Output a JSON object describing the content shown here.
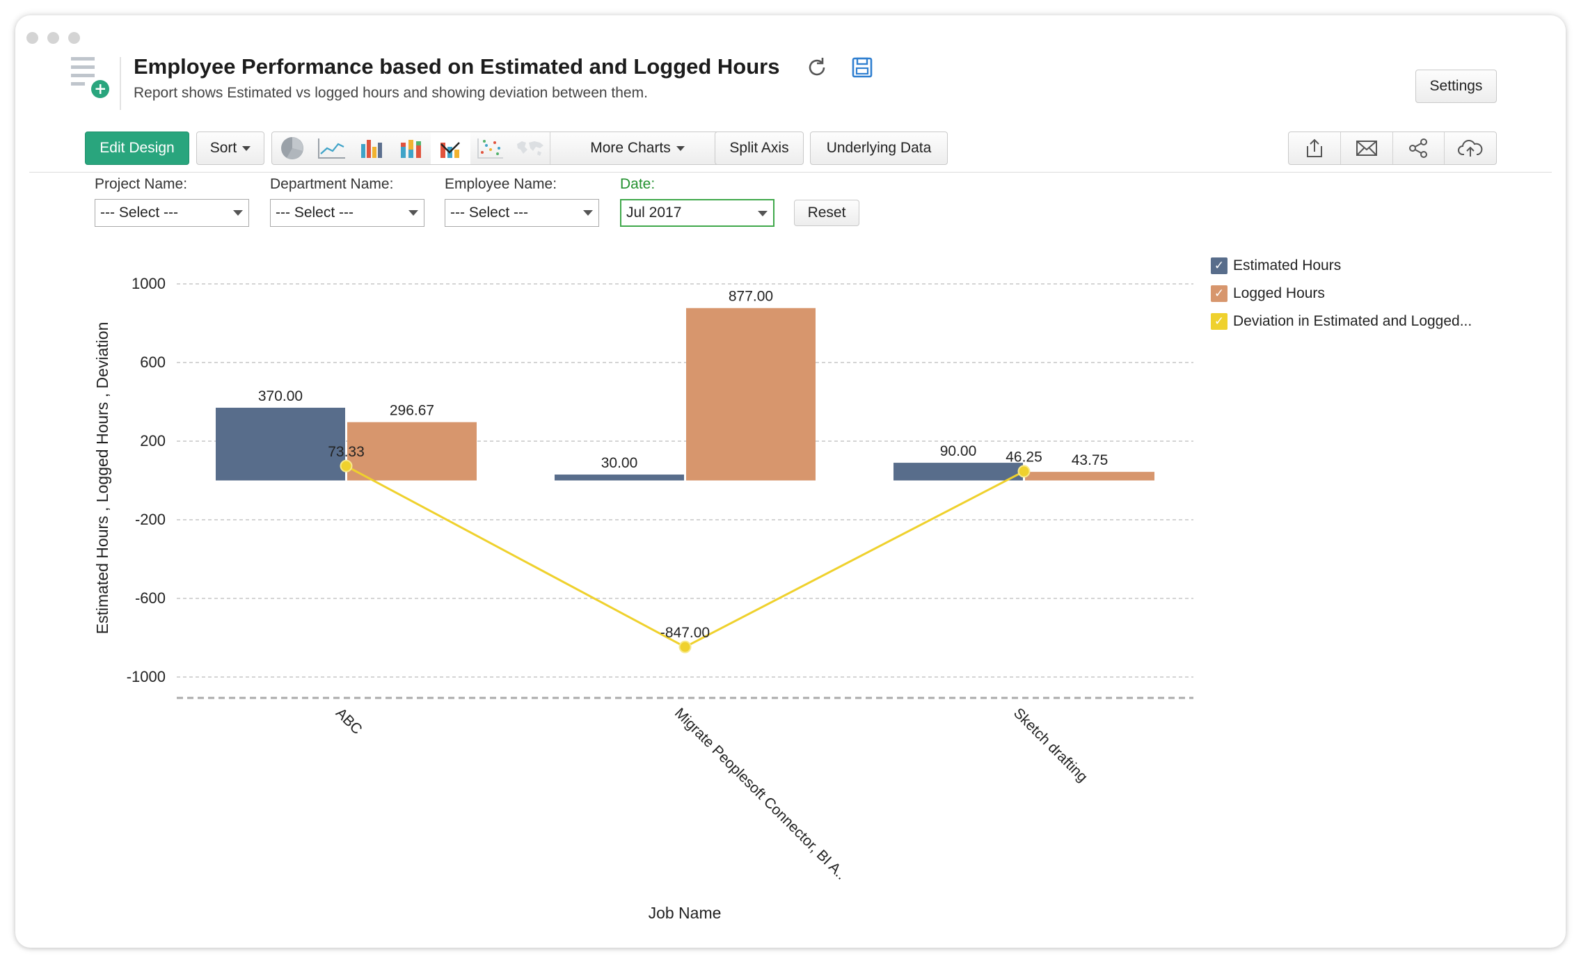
{
  "header": {
    "title": "Employee Performance based on Estimated and Logged Hours",
    "subtitle": "Report shows Estimated vs logged hours and showing deviation between them.",
    "settings_label": "Settings"
  },
  "toolbar": {
    "edit_design_label": "Edit Design",
    "sort_label": "Sort",
    "more_charts_label": "More Charts",
    "split_axis_label": "Split Axis",
    "underlying_data_label": "Underlying Data",
    "chart_types": [
      "pie-chart-icon",
      "line-chart-icon",
      "bar-chart-icon",
      "stacked-bar-chart-icon",
      "combination-chart-icon",
      "scatter-chart-icon",
      "map-chart-icon"
    ],
    "action_icons": [
      "export-icon",
      "email-icon",
      "share-icon",
      "publish-icon"
    ]
  },
  "filters": [
    {
      "label": "Project Name:",
      "value": "--- Select ---"
    },
    {
      "label": "Department Name:",
      "value": "--- Select ---"
    },
    {
      "label": "Employee Name:",
      "value": "--- Select ---"
    },
    {
      "label": "Date:",
      "value": "Jul 2017"
    }
  ],
  "reset_label": "Reset",
  "colors": {
    "primary": "#29a57d",
    "estimated": "#586d8b",
    "logged": "#d7966d",
    "deviation": "#efd12d",
    "date_filter": "#23912f"
  },
  "chart_data": {
    "type": "bar",
    "categories": [
      "ABC",
      "Migrate Peoplesoft Connector,  BI A..",
      "Sketch drafting"
    ],
    "series": [
      {
        "name": "Estimated Hours",
        "type": "bar",
        "values": [
          370.0,
          30.0,
          90.0
        ],
        "labels": [
          "370.00",
          "30.00",
          "90.00"
        ]
      },
      {
        "name": "Logged Hours",
        "type": "bar",
        "values": [
          296.67,
          877.0,
          43.75
        ],
        "labels": [
          "296.67",
          "877.00",
          "43.75"
        ]
      },
      {
        "name": "Deviation in Estimated and Logged...",
        "type": "line",
        "values": [
          73.33,
          -847.0,
          46.25
        ],
        "labels": [
          "73.33",
          "-847.00",
          "46.25"
        ]
      }
    ],
    "xlabel": "Job Name",
    "ylabel": "Estimated Hours , Logged Hours , Deviation",
    "ylim": [
      -1000,
      1000
    ],
    "yticks": [
      1000,
      600,
      200,
      -200,
      -600,
      -1000
    ],
    "grid": true,
    "legend_position": "right"
  }
}
